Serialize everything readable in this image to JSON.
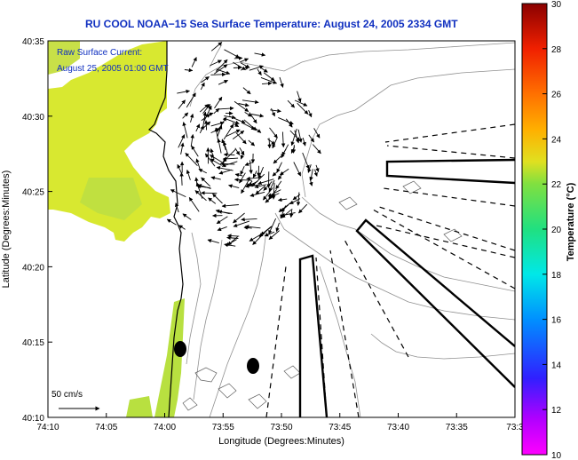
{
  "title": "RU COOL  NOAA−15  Sea Surface Temperature:  August 24, 2005 2334 GMT",
  "annotation": {
    "line1": "Raw Surface Current:",
    "line2": "August 25, 2005 01:00 GMT"
  },
  "scale_label": "50 cm/s",
  "axes": {
    "xlabel": "Longitude (Degrees:Minutes)",
    "ylabel": "Latitude (Degrees:Minutes)",
    "x_ticks": [
      "74:10",
      "74:05",
      "74:00",
      "73:55",
      "73:50",
      "73:45",
      "73:40",
      "73:35",
      "73:3"
    ],
    "y_ticks": [
      "40:35",
      "40:30",
      "40:25",
      "40:20",
      "40:15",
      "40:10"
    ]
  },
  "colorbar": {
    "label": "Temperature (°C)",
    "ticks": [
      "30",
      "28",
      "26",
      "24",
      "22",
      "20",
      "18",
      "16",
      "14",
      "12",
      "10"
    ],
    "min": 10,
    "max": 30
  },
  "colors": {
    "title": "#1030c0",
    "annotation": "#1030c0",
    "land_sst": "#d8e830",
    "coastal_sst": "#b8e040"
  }
}
